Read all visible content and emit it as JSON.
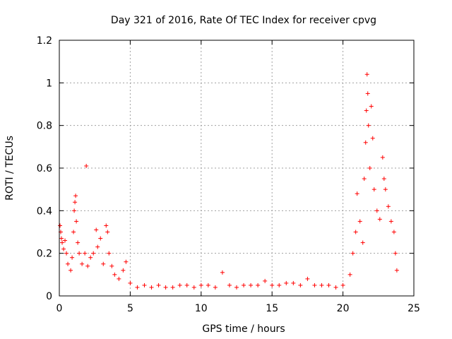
{
  "chart_data": {
    "type": "scatter",
    "title": "Day 321 of 2016, Rate Of TEC Index for receiver cpvg",
    "xlabel": "GPS time / hours",
    "ylabel": "ROTI / TECUs",
    "xlim": [
      0,
      25
    ],
    "ylim": [
      0,
      1.2
    ],
    "x_ticks": [
      0,
      5,
      10,
      15,
      20,
      25
    ],
    "x_tick_labels": [
      "0",
      "5",
      "10",
      "15",
      "20",
      "25"
    ],
    "y_ticks": [
      0,
      0.2,
      0.4,
      0.6,
      0.8,
      1.0,
      1.2
    ],
    "y_tick_labels": [
      "0",
      "0.2",
      "0.4",
      "0.6",
      "0.8",
      "1",
      "1.2"
    ],
    "grid": true,
    "marker": "+",
    "color": "#ff0000",
    "series": [
      {
        "name": "ROTI",
        "points": [
          [
            0.05,
            0.33
          ],
          [
            0.1,
            0.3
          ],
          [
            0.15,
            0.27
          ],
          [
            0.2,
            0.25
          ],
          [
            0.3,
            0.22
          ],
          [
            0.4,
            0.26
          ],
          [
            0.5,
            0.2
          ],
          [
            0.6,
            0.15
          ],
          [
            0.8,
            0.12
          ],
          [
            0.9,
            0.18
          ],
          [
            1.0,
            0.3
          ],
          [
            1.05,
            0.4
          ],
          [
            1.1,
            0.44
          ],
          [
            1.15,
            0.47
          ],
          [
            1.2,
            0.35
          ],
          [
            1.3,
            0.25
          ],
          [
            1.4,
            0.2
          ],
          [
            1.6,
            0.15
          ],
          [
            1.8,
            0.2
          ],
          [
            1.9,
            0.61
          ],
          [
            2.0,
            0.14
          ],
          [
            2.2,
            0.18
          ],
          [
            2.4,
            0.2
          ],
          [
            2.6,
            0.31
          ],
          [
            2.7,
            0.23
          ],
          [
            2.9,
            0.27
          ],
          [
            3.1,
            0.15
          ],
          [
            3.3,
            0.33
          ],
          [
            3.4,
            0.3
          ],
          [
            3.5,
            0.2
          ],
          [
            3.7,
            0.14
          ],
          [
            3.9,
            0.1
          ],
          [
            4.2,
            0.08
          ],
          [
            4.5,
            0.12
          ],
          [
            4.7,
            0.16
          ],
          [
            5.0,
            0.06
          ],
          [
            5.5,
            0.04
          ],
          [
            6.0,
            0.05
          ],
          [
            6.5,
            0.04
          ],
          [
            7.0,
            0.05
          ],
          [
            7.5,
            0.04
          ],
          [
            8.0,
            0.04
          ],
          [
            8.5,
            0.05
          ],
          [
            9.0,
            0.05
          ],
          [
            9.5,
            0.04
          ],
          [
            10.0,
            0.05
          ],
          [
            10.5,
            0.05
          ],
          [
            11.0,
            0.04
          ],
          [
            11.5,
            0.11
          ],
          [
            12.0,
            0.05
          ],
          [
            12.5,
            0.04
          ],
          [
            13.0,
            0.05
          ],
          [
            13.5,
            0.05
          ],
          [
            14.0,
            0.05
          ],
          [
            14.5,
            0.07
          ],
          [
            15.0,
            0.05
          ],
          [
            15.5,
            0.05
          ],
          [
            16.0,
            0.06
          ],
          [
            16.5,
            0.06
          ],
          [
            17.0,
            0.05
          ],
          [
            17.5,
            0.08
          ],
          [
            18.0,
            0.05
          ],
          [
            18.5,
            0.05
          ],
          [
            19.0,
            0.05
          ],
          [
            19.5,
            0.04
          ],
          [
            20.0,
            0.05
          ],
          [
            20.5,
            0.1
          ],
          [
            20.7,
            0.2
          ],
          [
            20.9,
            0.3
          ],
          [
            21.0,
            0.48
          ],
          [
            21.2,
            0.35
          ],
          [
            21.4,
            0.25
          ],
          [
            21.5,
            0.55
          ],
          [
            21.6,
            0.72
          ],
          [
            21.65,
            0.87
          ],
          [
            21.7,
            1.04
          ],
          [
            21.75,
            0.95
          ],
          [
            21.8,
            0.8
          ],
          [
            21.9,
            0.6
          ],
          [
            22.0,
            0.89
          ],
          [
            22.1,
            0.74
          ],
          [
            22.2,
            0.5
          ],
          [
            22.4,
            0.4
          ],
          [
            22.6,
            0.36
          ],
          [
            22.8,
            0.65
          ],
          [
            22.9,
            0.55
          ],
          [
            23.0,
            0.5
          ],
          [
            23.2,
            0.42
          ],
          [
            23.4,
            0.35
          ],
          [
            23.6,
            0.3
          ],
          [
            23.7,
            0.2
          ],
          [
            23.8,
            0.12
          ]
        ]
      }
    ]
  }
}
